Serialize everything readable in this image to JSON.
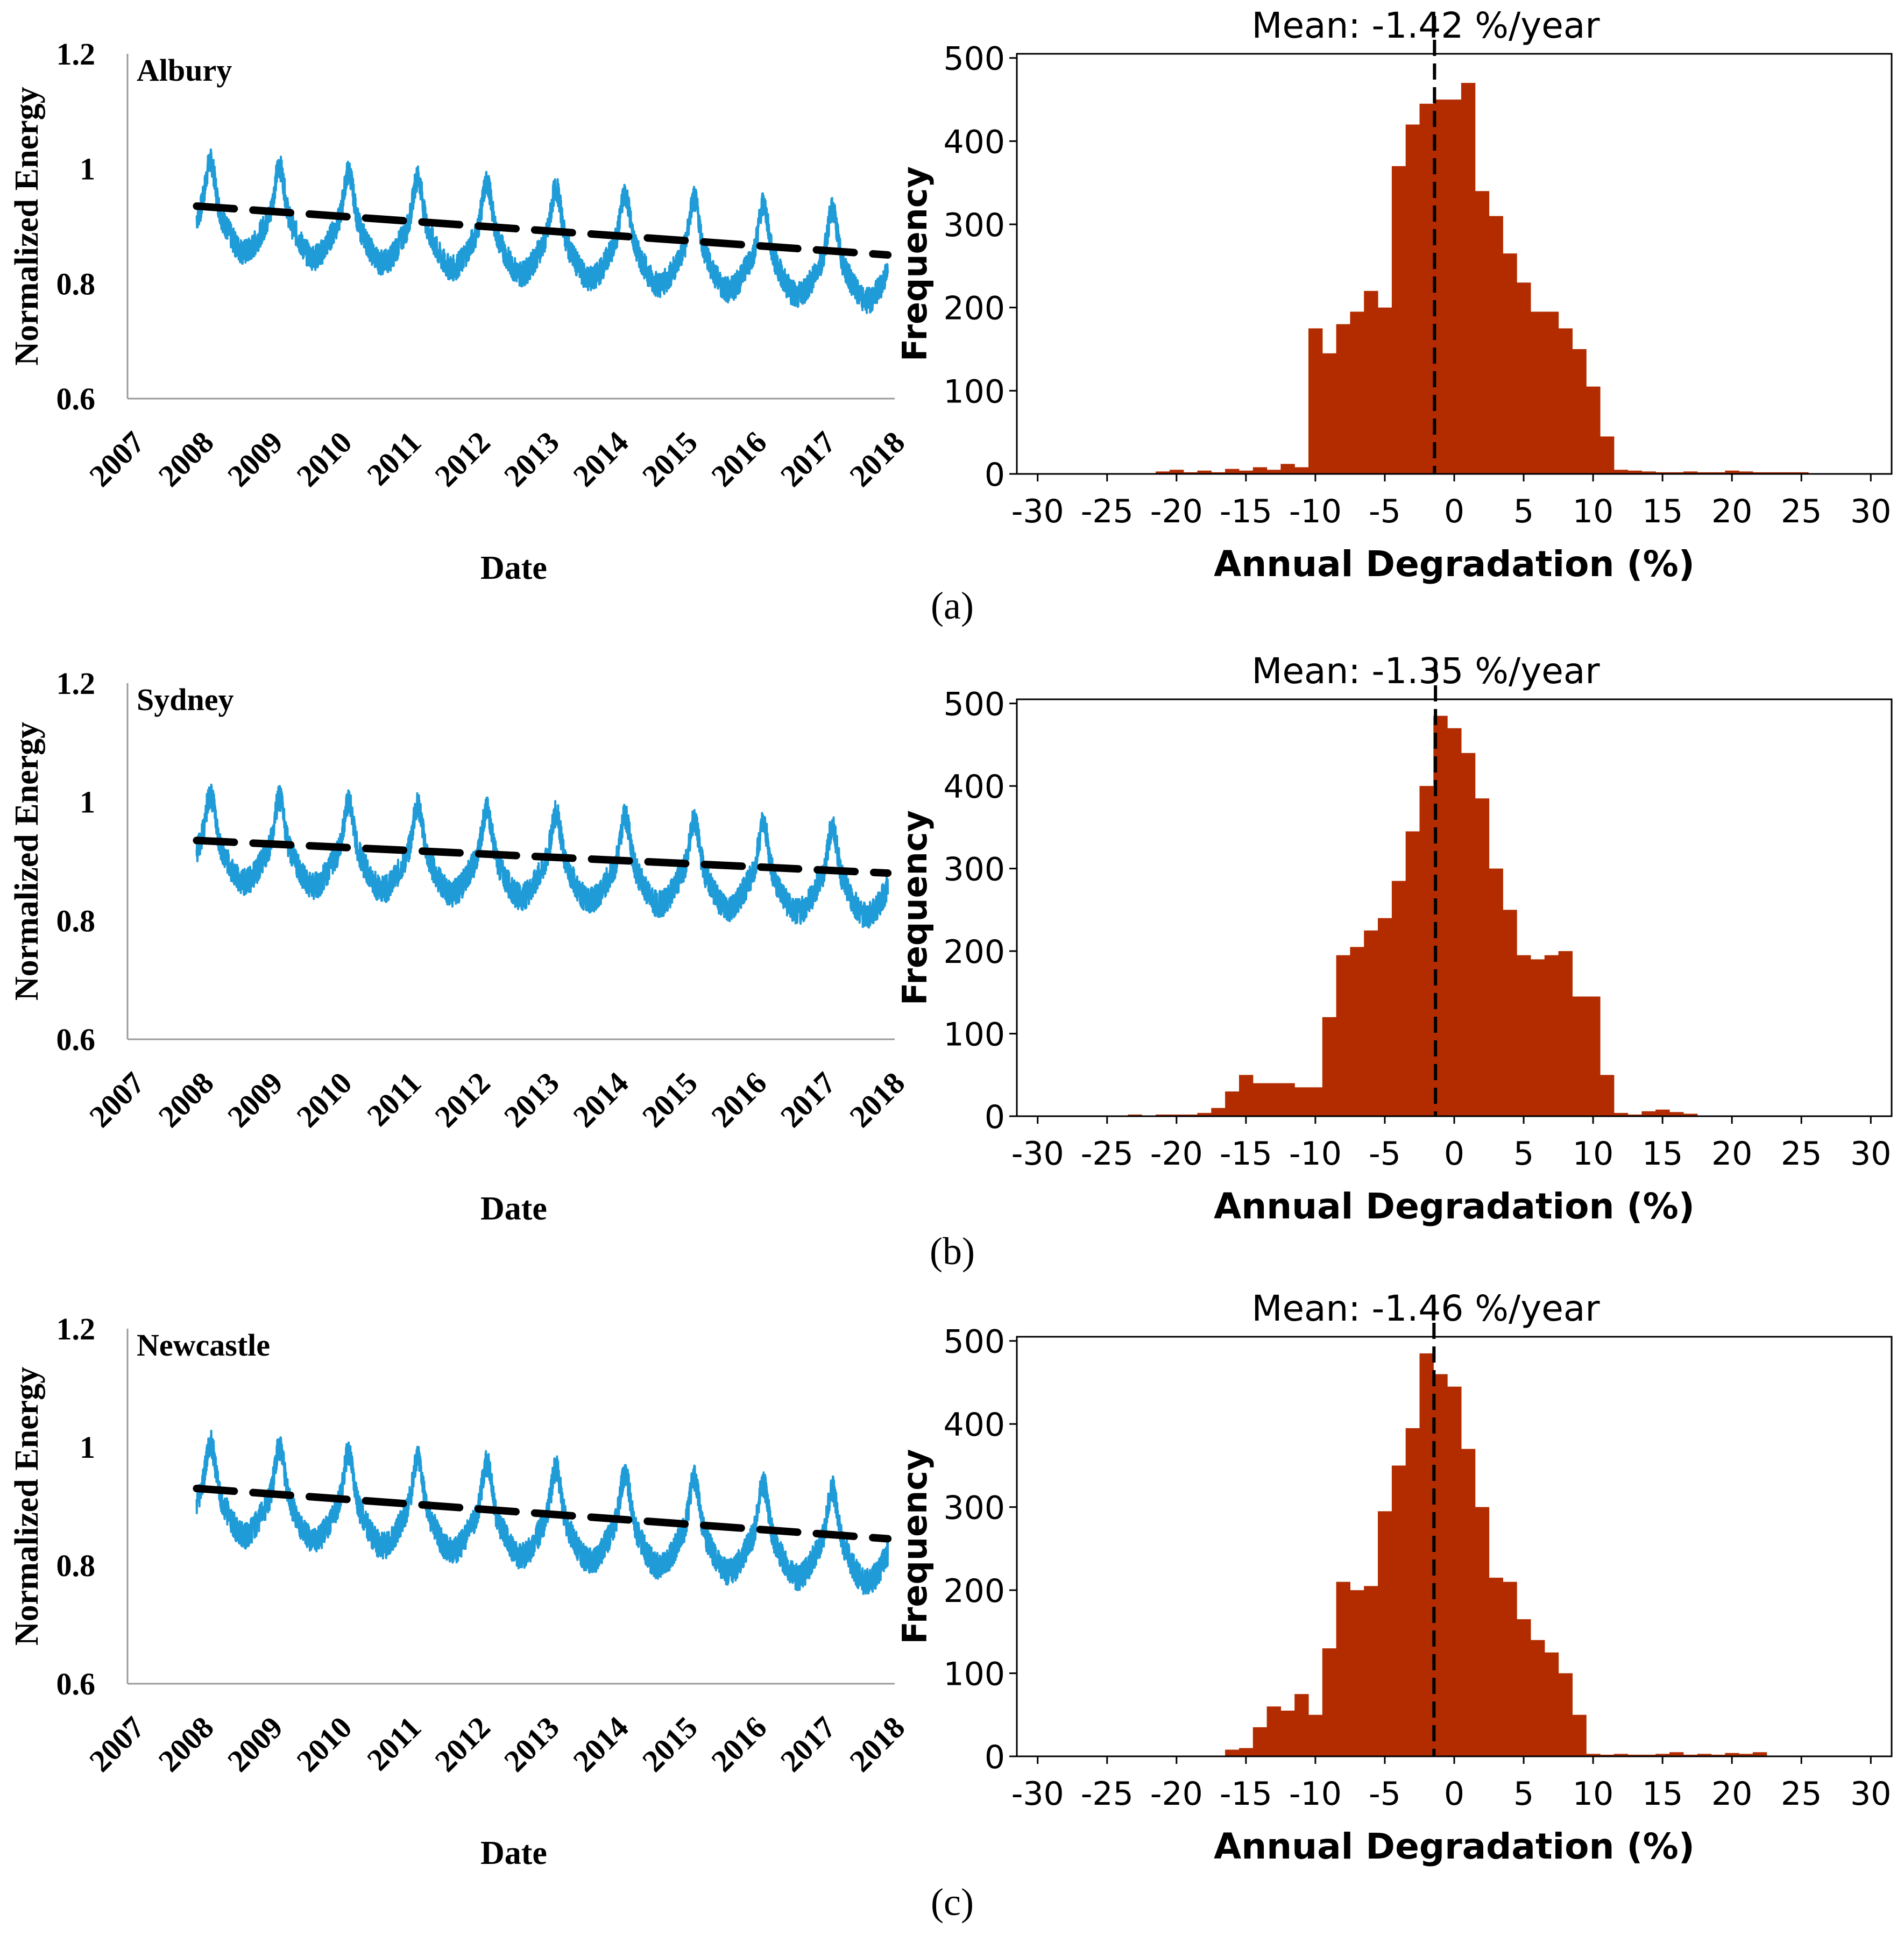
{
  "colors": {
    "series": "#1f9bd8",
    "trend": "#000000",
    "bars": "#b22c00",
    "axis": "#9a9a9a",
    "text": "#000000"
  },
  "chart_data": [
    {
      "type": "line",
      "panel": "a",
      "location": "Albury",
      "xlabel": "Date",
      "ylabel": "Normalized Energy",
      "x_ticks": [
        "2007",
        "2008",
        "2009",
        "2010",
        "2011",
        "2012",
        "2013",
        "2014",
        "2015",
        "2016",
        "2017",
        "2018"
      ],
      "y_ticks": [
        "0.6",
        "0.8",
        "1",
        "1.2"
      ],
      "xlim": [
        2007,
        2018.1
      ],
      "ylim": [
        0.6,
        1.2
      ],
      "series": {
        "name": "Normalized Energy",
        "start": 2008.0,
        "end": 2018.0,
        "base": 0.9,
        "slope": -0.0094,
        "amplitude": 0.085
      },
      "trend": {
        "name": "Trend",
        "start": 2008.0,
        "end": 2018.0,
        "y_start": 0.935,
        "y_end": 0.85
      }
    },
    {
      "type": "bar",
      "panel": "a",
      "title": "Mean: -1.42 %/year",
      "xlabel": "Annual Degradation (%)",
      "ylabel": "Frequency",
      "x_ticks": [
        "-30",
        "-25",
        "-20",
        "-15",
        "-10",
        "-5",
        "0",
        "5",
        "10",
        "15",
        "20",
        "25",
        "30"
      ],
      "y_ticks": [
        "0",
        "100",
        "200",
        "300",
        "400",
        "500"
      ],
      "xlim": [
        -31.5,
        31.5
      ],
      "ylim": [
        0,
        505
      ],
      "mean": -1.42,
      "bin_start": -21.5,
      "bin_width": 1,
      "values": [
        3,
        5,
        2,
        4,
        2,
        6,
        4,
        8,
        5,
        12,
        8,
        175,
        145,
        180,
        195,
        220,
        200,
        370,
        420,
        445,
        450,
        450,
        470,
        340,
        310,
        265,
        230,
        195,
        195,
        175,
        150,
        105,
        45,
        5,
        4,
        3,
        2,
        2,
        3,
        2,
        2,
        4,
        3,
        2,
        2,
        2,
        2
      ]
    },
    {
      "type": "line",
      "panel": "b",
      "location": "Sydney",
      "xlabel": "Date",
      "ylabel": "Normalized Energy",
      "x_ticks": [
        "2007",
        "2008",
        "2009",
        "2010",
        "2011",
        "2012",
        "2013",
        "2014",
        "2015",
        "2016",
        "2017",
        "2018"
      ],
      "y_ticks": [
        "0.6",
        "0.8",
        "1",
        "1.2"
      ],
      "xlim": [
        2007,
        2018.1
      ],
      "ylim": [
        0.6,
        1.2
      ],
      "series": {
        "name": "Normalized Energy",
        "start": 2008.0,
        "end": 2018.0,
        "base": 0.905,
        "slope": -0.0062,
        "amplitude": 0.08
      },
      "trend": {
        "name": "Trend",
        "start": 2008.0,
        "end": 2018.0,
        "y_start": 0.935,
        "y_end": 0.88
      }
    },
    {
      "type": "bar",
      "panel": "b",
      "title": "Mean: -1.35 %/year",
      "xlabel": "Annual Degradation (%)",
      "ylabel": "Frequency",
      "x_ticks": [
        "-30",
        "-25",
        "-20",
        "-15",
        "-10",
        "-5",
        "0",
        "5",
        "10",
        "15",
        "20",
        "25",
        "30"
      ],
      "y_ticks": [
        "0",
        "100",
        "200",
        "300",
        "400",
        "500"
      ],
      "xlim": [
        -31.5,
        31.5
      ],
      "ylim": [
        0,
        505
      ],
      "mean": -1.35,
      "bin_start": -23.5,
      "bin_width": 1,
      "values": [
        2,
        0,
        2,
        2,
        2,
        4,
        10,
        30,
        50,
        40,
        40,
        40,
        35,
        35,
        120,
        195,
        205,
        225,
        240,
        285,
        345,
        400,
        485,
        470,
        440,
        385,
        300,
        250,
        195,
        190,
        195,
        200,
        145,
        145,
        50,
        4,
        2,
        6,
        8,
        5,
        3
      ]
    },
    {
      "type": "line",
      "panel": "c",
      "location": "Newcastle",
      "xlabel": "Date",
      "ylabel": "Normalized Energy",
      "x_ticks": [
        "2007",
        "2008",
        "2009",
        "2010",
        "2011",
        "2012",
        "2013",
        "2014",
        "2015",
        "2016",
        "2017",
        "2018"
      ],
      "y_ticks": [
        "0.6",
        "0.8",
        "1",
        "1.2"
      ],
      "xlim": [
        2007,
        2018.1
      ],
      "ylim": [
        0.6,
        1.2
      ],
      "series": {
        "name": "Normalized Energy",
        "start": 2008.0,
        "end": 2018.0,
        "base": 0.895,
        "slope": -0.0088,
        "amplitude": 0.085
      },
      "trend": {
        "name": "Trend",
        "start": 2008.0,
        "end": 2018.0,
        "y_start": 0.93,
        "y_end": 0.845
      }
    },
    {
      "type": "bar",
      "panel": "c",
      "title": "Mean: -1.46 %/year",
      "xlabel": "Annual Degradation (%)",
      "ylabel": "Frequency",
      "x_ticks": [
        "-30",
        "-25",
        "-20",
        "-15",
        "-10",
        "-5",
        "0",
        "5",
        "10",
        "15",
        "20",
        "25",
        "30"
      ],
      "y_ticks": [
        "0",
        "100",
        "200",
        "300",
        "400",
        "500"
      ],
      "xlim": [
        -31.5,
        31.5
      ],
      "ylim": [
        0,
        505
      ],
      "mean": -1.46,
      "bin_start": -16.5,
      "bin_width": 1,
      "values": [
        8,
        10,
        35,
        60,
        55,
        75,
        50,
        130,
        210,
        200,
        205,
        295,
        350,
        395,
        485,
        460,
        445,
        370,
        300,
        215,
        210,
        165,
        140,
        125,
        100,
        50,
        3,
        2,
        3,
        2,
        2,
        3,
        5,
        2,
        3,
        2,
        4,
        3,
        5
      ]
    }
  ],
  "panel_labels": [
    "(a)",
    "(b)",
    "(c)"
  ]
}
